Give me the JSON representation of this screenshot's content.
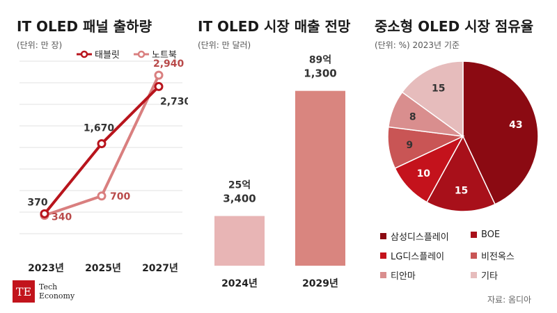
{
  "charts": {
    "left": {
      "title": "IT OLED 패널 출하량",
      "unit": "(단위: 만 장)"
    },
    "middle": {
      "title": "IT OLED 시장 매출 전망",
      "unit": "(단위: 만 달러)"
    },
    "right": {
      "title": "중소형 OLED 시장 점유율",
      "unit": "(단위: %) 2023년 기준"
    }
  },
  "chart_data": [
    {
      "type": "line",
      "title": "IT OLED 패널 출하량",
      "unit": "(단위: 만 장)",
      "x": [
        "2023년",
        "2025년",
        "2027년"
      ],
      "series": [
        {
          "name": "태블릿",
          "values": [
            370,
            1670,
            2730
          ],
          "labels": [
            "370",
            "1,670",
            "2,730"
          ],
          "color": "#b8141c"
        },
        {
          "name": "노트북",
          "values": [
            340,
            700,
            2940
          ],
          "labels": [
            "340",
            "700",
            "2,940"
          ],
          "color": "#d97f7f"
        }
      ],
      "ylim": [
        0,
        3200
      ]
    },
    {
      "type": "bar",
      "title": "IT OLED 시장 매출 전망",
      "unit": "(단위: 만 달러)",
      "categories": [
        "2024년",
        "2029년"
      ],
      "values": [
        253400,
        891300
      ],
      "labels": [
        [
          "25억",
          "3,400"
        ],
        [
          "89억",
          "1,300"
        ]
      ],
      "colors": [
        "#e8b5b5",
        "#d9857f"
      ],
      "ylim": [
        0,
        1000000
      ]
    },
    {
      "type": "pie",
      "title": "중소형 OLED 시장 점유율",
      "unit": "(단위: %) 2023년 기준",
      "labels": [
        "삼성디스플레이",
        "BOE",
        "LG디스플레이",
        "비전옥스",
        "티안마",
        "기타"
      ],
      "values": [
        43,
        15,
        10,
        9,
        8,
        15
      ],
      "colors": [
        "#8b0a12",
        "#a8101a",
        "#c4121c",
        "#c95555",
        "#d98e8e",
        "#e6bcbc"
      ]
    }
  ],
  "brand": {
    "logo": "TE",
    "name_line1": "Tech",
    "name_line2": "Economy"
  },
  "source": "자료: 옴디아"
}
